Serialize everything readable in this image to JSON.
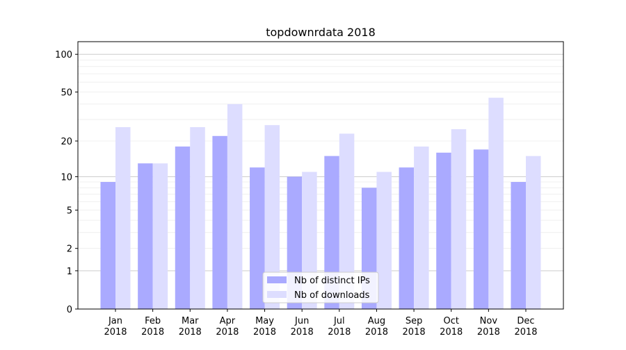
{
  "chart_data": {
    "type": "bar",
    "title": "topdownrdata 2018",
    "xlabel": "",
    "ylabel": "",
    "yscale": "log10(y+1)",
    "ylim": [
      0,
      120
    ],
    "yticks": [
      0,
      1,
      2,
      5,
      10,
      20,
      50,
      100
    ],
    "ytick_labels": [
      "0",
      "1",
      "2",
      "5",
      "10",
      "20",
      "50",
      "100"
    ],
    "categories": [
      "Jan\n2018",
      "Feb\n2018",
      "Mar\n2018",
      "Apr\n2018",
      "May\n2018",
      "Jun\n2018",
      "Jul\n2018",
      "Aug\n2018",
      "Sep\n2018",
      "Oct\n2018",
      "Nov\n2018",
      "Dec\n2018"
    ],
    "series": [
      {
        "name": "Nb of distinct IPs",
        "color": "#aaaaff",
        "values": [
          9,
          13,
          18,
          22,
          12,
          10,
          15,
          8,
          12,
          16,
          17,
          9
        ]
      },
      {
        "name": "Nb of downloads",
        "color": "#ddddff",
        "values": [
          26,
          13,
          26,
          40,
          27,
          11,
          23,
          11,
          18,
          25,
          45,
          15
        ]
      }
    ],
    "grid": true,
    "legend_position": "bottom-center"
  }
}
